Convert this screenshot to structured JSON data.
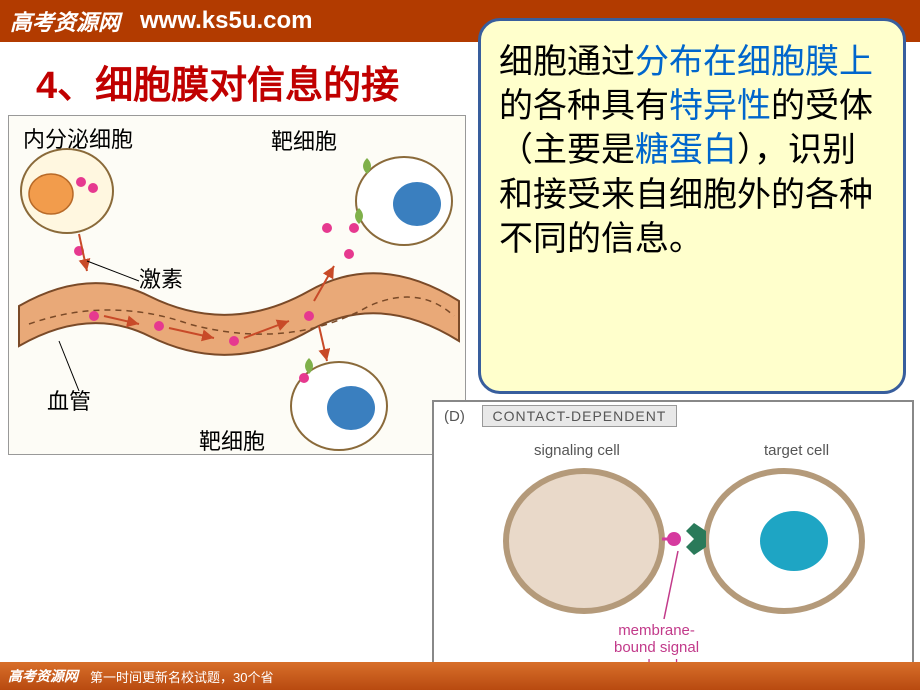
{
  "header": {
    "logo_text": "高考资源网",
    "url_text": "www.ks5u.com"
  },
  "title": "4、细胞膜对信息的接",
  "callout": {
    "parts": [
      {
        "t": "细胞通过",
        "c": "black"
      },
      {
        "t": "分布在细胞膜上",
        "c": "blue"
      },
      {
        "t": "的各种具有",
        "c": "black"
      },
      {
        "t": "特异性",
        "c": "blue"
      },
      {
        "t": "的受体（主要是",
        "c": "black"
      },
      {
        "t": "糖蛋白",
        "c": "blue"
      },
      {
        "t": "），识别和接受来自细胞外的各种不同的信息。",
        "c": "black"
      }
    ]
  },
  "diagram1": {
    "labels": {
      "endocrine": "内分泌细胞",
      "target": "靶细胞",
      "hormone": "激素",
      "vessel": "血管",
      "target2": "靶细胞"
    },
    "endocrine_cell": {
      "fill": "#fff7e0",
      "stroke": "#8a6a3a"
    },
    "vesicle": {
      "fill": "#f29c4c",
      "stroke": "#b86a28"
    },
    "hormone_dot": {
      "fill": "#e6398f"
    },
    "receptor": {
      "fill": "#7fb04a"
    },
    "target_nucleus": {
      "fill": "#3a7fbf"
    },
    "vessel_fill": "#e9a978",
    "vessel_stroke": "#7a4a28",
    "arrow": "#c84a28"
  },
  "diagram2": {
    "panel_id": "(D)",
    "panel_title": "CONTACT-DEPENDENT",
    "signaling_label": "signaling cell",
    "target_label": "target cell",
    "molecule_label": [
      "membrane-",
      "bound signal",
      "molecule"
    ],
    "signal_cell_fill": "#e9d9c9",
    "signal_cell_stroke": "#b49a7a",
    "target_cell_stroke": "#b49a7a",
    "target_nucleus": "#1ea5c4",
    "receptor_fill": "#2a7a5a",
    "ligand_fill": "#d63a9f",
    "label_color_pink": "#c23a8a"
  },
  "footer": {
    "logo": "高考资源网",
    "text": "第一时间更新名校试题，30个省"
  }
}
